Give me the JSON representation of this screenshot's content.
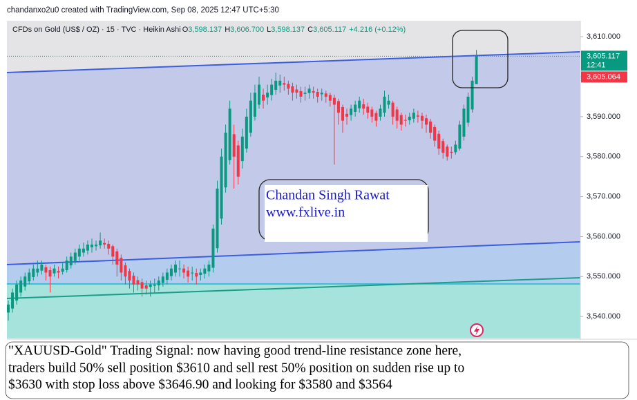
{
  "chart_data": {
    "type": "candlestick",
    "caption": "chandanxo2u0 created with TradingView.com, Sep 08, 2025 12:47 UTC+5:30",
    "legend": {
      "symbol": "CFDs on Gold (US$ / OZ) · 15 · TVC · Heikin Ashi",
      "ohlc": [
        {
          "key": "O",
          "text": "3,598.137"
        },
        {
          "key": "H",
          "text": "3,606.700"
        },
        {
          "key": "L",
          "text": "3,598.137"
        },
        {
          "key": "C",
          "text": "3,605.117"
        }
      ],
      "change": "+4.216 (+0.12%)"
    },
    "up_color": "#089981",
    "down_color": "#f23645",
    "ylim": [
      3534.5,
      3614
    ],
    "yticks": [
      {
        "value": 3540,
        "label": "3,540.000"
      },
      {
        "value": 3550,
        "label": "3,550.000"
      },
      {
        "value": 3560,
        "label": "3,560.000"
      },
      {
        "value": 3570,
        "label": "3,570.000"
      },
      {
        "value": 3580,
        "label": "3,580.000"
      },
      {
        "value": 3590,
        "label": "3,590.000"
      },
      {
        "value": 3600,
        "label": "3,600.000"
      },
      {
        "value": 3610,
        "label": "3,610.000"
      }
    ],
    "last_price": {
      "value": 3605.117,
      "label": "3,605.117",
      "countdown": "12:41"
    },
    "bid_price": {
      "value": 3605.064,
      "label": "3,605.064"
    },
    "open": [
      3541,
      3542,
      3544,
      3546,
      3547.5,
      3548.8,
      3549.9,
      3551,
      3551.5,
      3552.3,
      3551.6,
      3550.8,
      3551.4,
      3551.2,
      3551.6,
      3552.8,
      3553.9,
      3555,
      3556,
      3556.5,
      3557.3,
      3557.6,
      3557.8,
      3558.4,
      3558.2,
      3557.6,
      3556.3,
      3554.7,
      3552.8,
      3551.4,
      3550.2,
      3549.1,
      3548.6,
      3547.8,
      3547.4,
      3547.7,
      3547.8,
      3548.4,
      3549.2,
      3550.1,
      3551,
      3552,
      3552,
      3551.5,
      3550.8,
      3550.9,
      3550.4,
      3550.7,
      3551.3,
      3552.2,
      3557.1,
      3564.5,
      3572.3,
      3579.1,
      3585.6,
      3582.8,
      3578.9,
      3582,
      3586,
      3590,
      3593,
      3595.5,
      3594.8,
      3595.4,
      3596.7,
      3597.8,
      3598.4,
      3598.2,
      3597.6,
      3596.8,
      3596.4,
      3595.7,
      3595.9,
      3596.4,
      3596.2,
      3595.6,
      3595.8,
      3595.4,
      3594.7,
      3593.9,
      3592.4,
      3590.7,
      3590.4,
      3591.2,
      3592.1,
      3593.1,
      3592.5,
      3591.8,
      3590.9,
      3590,
      3591,
      3593,
      3593.5,
      3591.8,
      3590.4,
      3589.2,
      3589.1,
      3589.5,
      3590.3,
      3590.2,
      3589.6,
      3588.8,
      3587.4,
      3585.7,
      3583.9,
      3582.5,
      3581.2,
      3581.1,
      3582,
      3585,
      3588.5,
      3591.8,
      3598.137
    ],
    "high": [
      3544,
      3547,
      3549,
      3550,
      3551,
      3552,
      3553,
      3554,
      3554,
      3553,
      3552.5,
      3553,
      3552.5,
      3553.5,
      3555,
      3556,
      3557,
      3558,
      3558.5,
      3559,
      3559.5,
      3559,
      3561,
      3559.5,
      3559,
      3558,
      3557,
      3555.5,
      3553.5,
      3552,
      3551,
      3550,
      3549.5,
      3549,
      3549,
      3549.5,
      3550,
      3551,
      3552,
      3553,
      3554,
      3554,
      3553,
      3552.5,
      3552.5,
      3552,
      3552,
      3553,
      3554,
      3563,
      3574,
      3582,
      3588,
      3594,
      3588,
      3584,
      3587,
      3592,
      3596,
      3598,
      3600,
      3597,
      3598,
      3599.5,
      3601,
      3600.5,
      3600,
      3599,
      3598.5,
      3598,
      3597.5,
      3597.5,
      3598,
      3597.5,
      3597,
      3597,
      3596.5,
      3596,
      3595.5,
      3594.5,
      3593,
      3592,
      3593,
      3594,
      3595,
      3594.5,
      3593.5,
      3592.5,
      3591.5,
      3593,
      3596.5,
      3595.5,
      3594,
      3592.5,
      3591,
      3590.5,
      3591,
      3592,
      3591.5,
      3591,
      3590.5,
      3589.5,
      3588,
      3586.5,
      3584.5,
      3583,
      3582.5,
      3584,
      3589,
      3593,
      3596,
      3600,
      3606.7
    ],
    "low": [
      3539,
      3541,
      3543,
      3545,
      3546.5,
      3548,
      3549,
      3550,
      3550.5,
      3549,
      3546,
      3550,
      3549.5,
      3550.5,
      3551,
      3552,
      3553,
      3554,
      3555,
      3555.5,
      3556,
      3556.5,
      3557,
      3557,
      3555.5,
      3553,
      3550,
      3549,
      3548,
      3547,
      3546,
      3546.5,
      3545,
      3545.5,
      3545,
      3546,
      3546.5,
      3547.5,
      3548,
      3549,
      3550,
      3550,
      3549.5,
      3548.5,
      3549,
      3548,
      3549,
      3549.5,
      3550,
      3551,
      3556,
      3563,
      3571,
      3578,
      3572,
      3573,
      3577,
      3581,
      3585,
      3589,
      3592,
      3592,
      3593,
      3594,
      3595.5,
      3596,
      3596.5,
      3595.5,
      3594,
      3594.5,
      3593.5,
      3594,
      3594.5,
      3594.5,
      3593.5,
      3594,
      3593.5,
      3592.5,
      3578,
      3588,
      3586,
      3588,
      3589,
      3590,
      3591,
      3590.5,
      3589.5,
      3588.5,
      3587.5,
      3589,
      3590,
      3592,
      3588,
      3587,
      3586.5,
      3587.5,
      3588,
      3588.5,
      3588.5,
      3587,
      3586,
      3584.5,
      3582.5,
      3580.5,
      3579.5,
      3579,
      3579.5,
      3580.5,
      3581.5,
      3584,
      3587.5,
      3591,
      3598.137
    ],
    "close": [
      3543,
      3546,
      3548,
      3549,
      3550,
      3551,
      3552,
      3552,
      3553,
      3551,
      3550,
      3552,
      3551,
      3552,
      3554,
      3555,
      3556,
      3557,
      3557,
      3558,
      3558,
      3558,
      3559,
      3558,
      3557,
      3555,
      3553,
      3551,
      3550,
      3549,
      3548,
      3548,
      3547,
      3547,
      3548,
      3548,
      3549,
      3550,
      3551,
      3552,
      3553,
      3552,
      3551,
      3550,
      3551,
      3550,
      3551,
      3552,
      3553,
      3562,
      3572,
      3580,
      3586,
      3592,
      3580,
      3575,
      3585,
      3590,
      3594,
      3596,
      3598,
      3594,
      3596,
      3598,
      3599,
      3599,
      3598,
      3597,
      3596,
      3596,
      3595,
      3596,
      3597,
      3596,
      3595,
      3596,
      3595,
      3594,
      3593,
      3591,
      3589,
      3590,
      3592,
      3593,
      3594,
      3592,
      3591,
      3590,
      3589,
      3592,
      3595,
      3594,
      3590,
      3589,
      3588,
      3589,
      3590,
      3591,
      3590,
      3589,
      3588,
      3586,
      3584,
      3582,
      3581,
      3580,
      3581,
      3583,
      3588,
      3592,
      3595,
      3599,
      3605.117
    ],
    "annotations": {
      "watermark": [
        "Chandan Singh Rawat",
        "www.fxlive.in"
      ],
      "note": [
        "\"XAUUSD-Gold\" Trading Signal: now having good trend-line resistance zone here,",
        "traders build 50% sell position $3610 and sell rest 50% position on sudden rise up to",
        "$3630 with stop loss above $3646.90 and looking for $3580 and $3564"
      ]
    }
  }
}
